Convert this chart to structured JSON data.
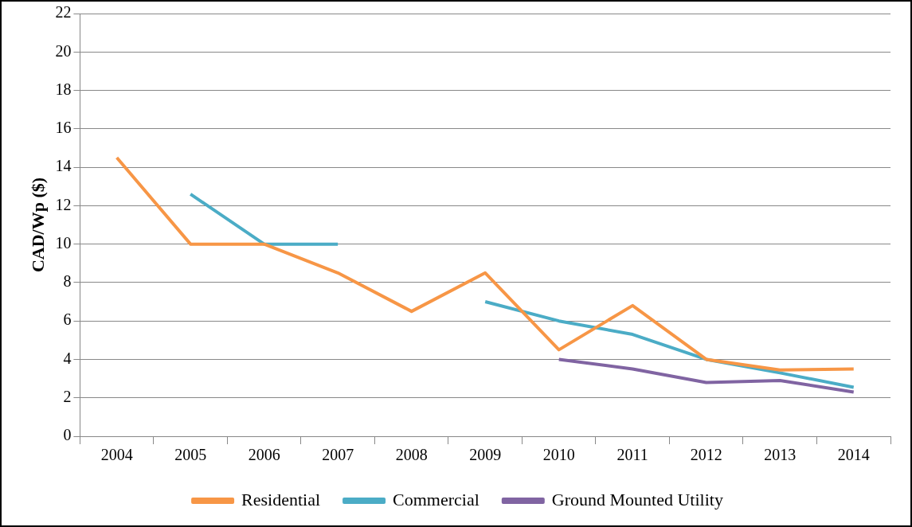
{
  "chart_data": {
    "type": "line",
    "ylabel": "CAD/Wp ($)",
    "categories": [
      "2004",
      "2005",
      "2006",
      "2007",
      "2008",
      "2009",
      "2010",
      "2011",
      "2012",
      "2013",
      "2014"
    ],
    "series": [
      {
        "name": "Residential",
        "color": "#f79646",
        "values": [
          14.5,
          10,
          10,
          8.5,
          6.5,
          8.5,
          4.5,
          6.8,
          4.0,
          3.45,
          3.5
        ]
      },
      {
        "name": "Commercial",
        "color": "#4bacc6",
        "values": [
          null,
          12.6,
          10,
          10,
          null,
          7.0,
          6.0,
          5.3,
          4.0,
          3.3,
          2.55
        ]
      },
      {
        "name": "Ground Mounted Utility",
        "color": "#8064a2",
        "values": [
          null,
          null,
          null,
          null,
          null,
          null,
          4.0,
          3.5,
          2.8,
          2.9,
          2.3
        ]
      }
    ],
    "ylim": [
      0,
      22
    ],
    "yticks": [
      0,
      2,
      4,
      6,
      8,
      10,
      12,
      14,
      16,
      18,
      20,
      22
    ],
    "grid": "y",
    "legend": "bottom",
    "marker": "none",
    "line_style": "solid"
  }
}
